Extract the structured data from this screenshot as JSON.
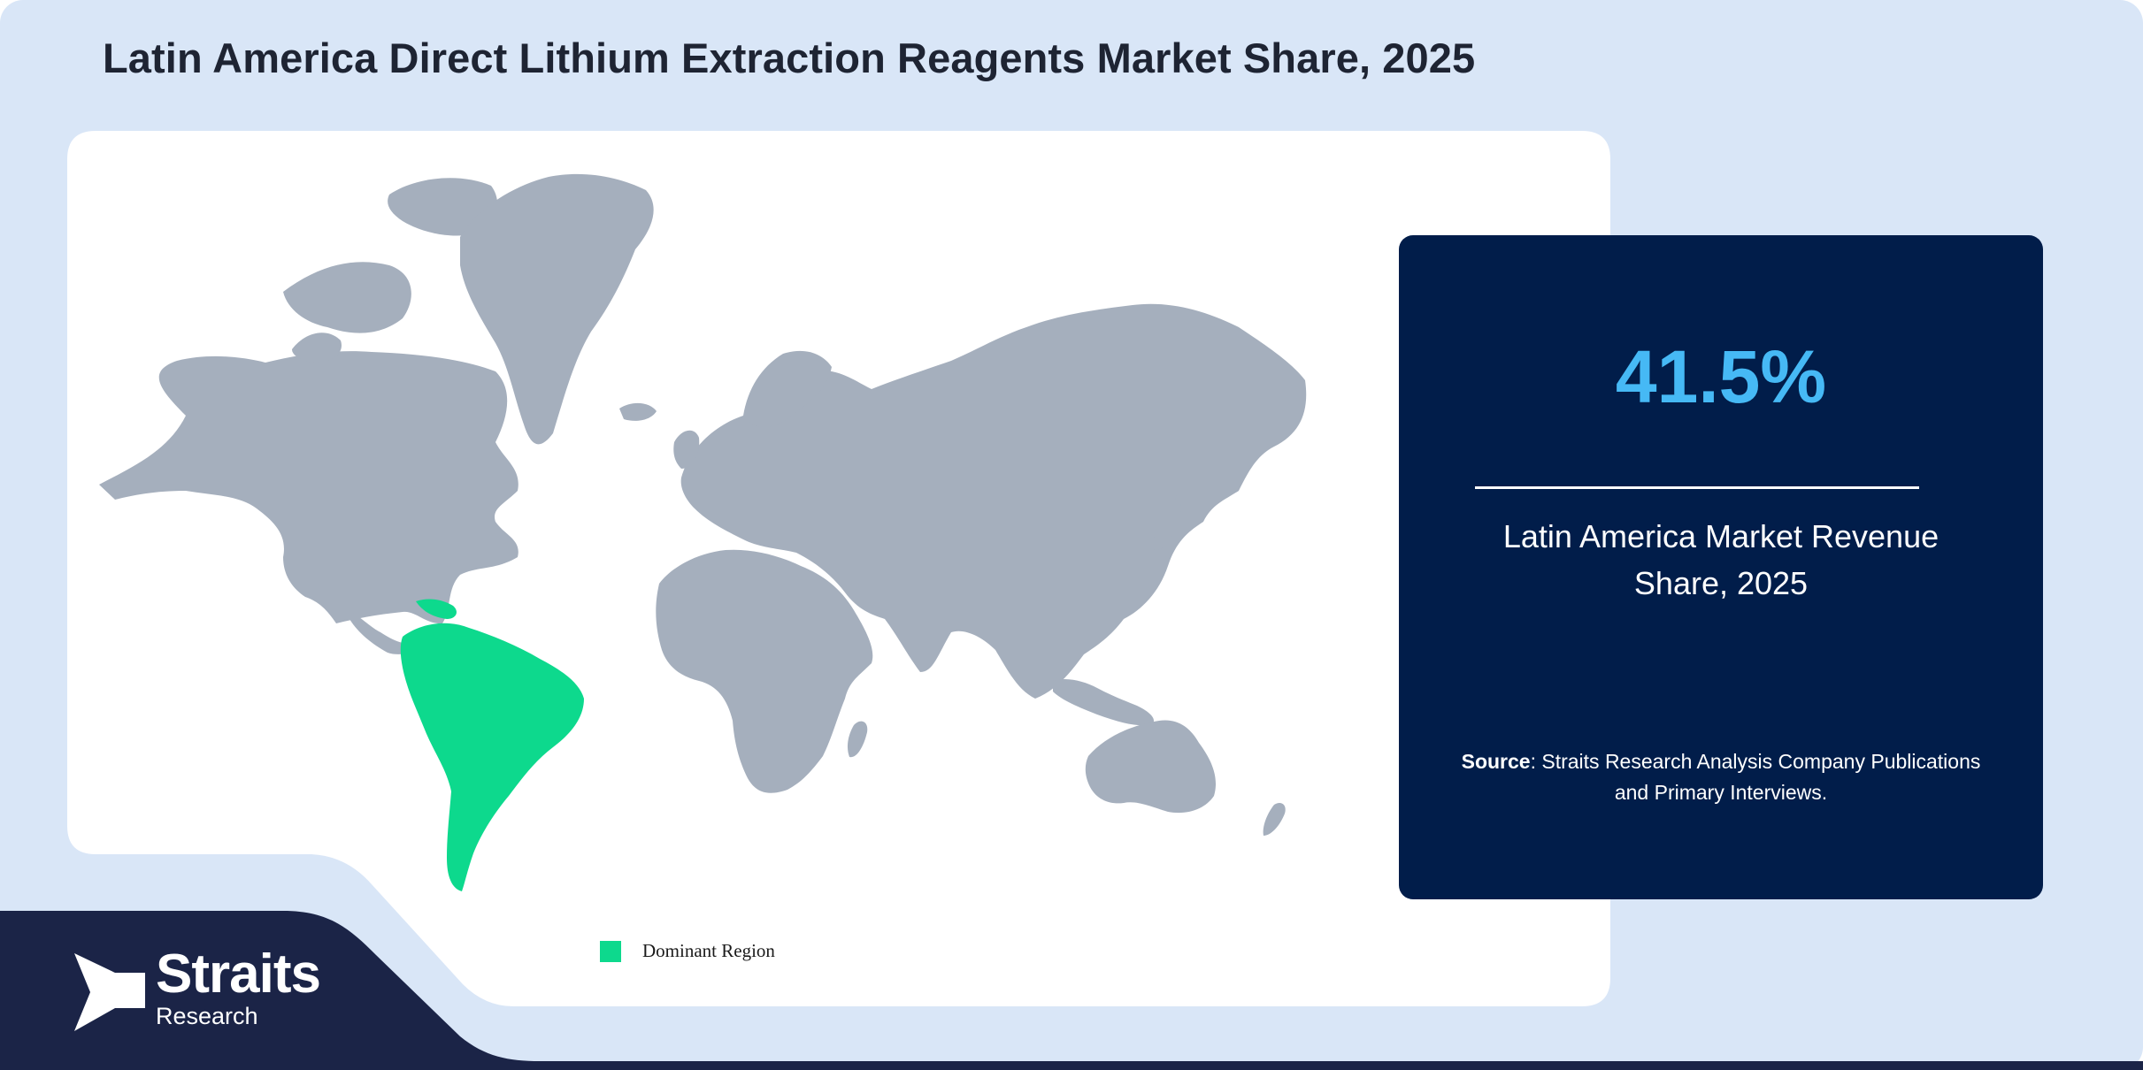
{
  "title": "Latin America Direct Lithium Extraction Reagents Market Share, 2025",
  "stat": {
    "value": "41.5%",
    "label": "Latin America Market Revenue Share, 2025"
  },
  "source": {
    "label": "Source",
    "text": ": Straits Research Analysis Company Publications and Primary Interviews."
  },
  "legend": {
    "label": "Dominant Region",
    "color": "#0dd98d"
  },
  "map": {
    "highlighted_region": "Latin America",
    "land_color": "#a5afbd",
    "highlight_color": "#0dd98d"
  },
  "brand": {
    "name": "Straits",
    "sub": "Research"
  },
  "colors": {
    "background": "#d9e6f7",
    "panel": "#ffffff",
    "navy": "#011d4a",
    "accent": "#46b9f5"
  }
}
